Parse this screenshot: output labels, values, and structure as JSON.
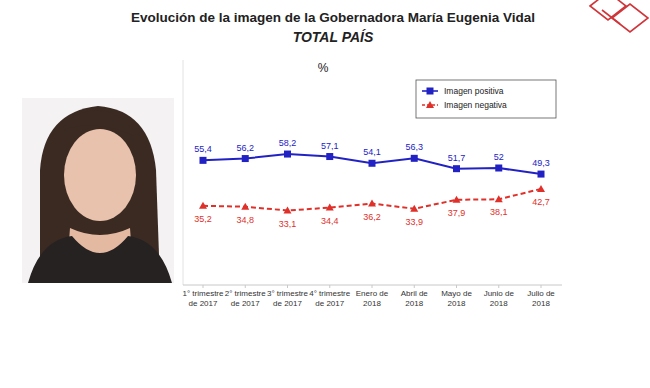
{
  "chart_data": {
    "type": "line",
    "title": "Evolución de la imagen de la Gobernadora María Eugenia Vidal",
    "subtitle": "TOTAL PAÍS",
    "ylabel": "%",
    "categories": [
      "1° trimestre de 2017",
      "2° trimestre de 2017",
      "3° trimestre de 2017",
      "4° trimestre de 2017",
      "Enero de 2018",
      "Abril de 2018",
      "Mayo de 2018",
      "Junio de 2018",
      "Julio de 2018"
    ],
    "series": [
      {
        "name": "Imagen positiva",
        "color": "#2222c4",
        "marker": "square",
        "line_style": "solid",
        "values": [
          55.4,
          56.2,
          58.2,
          57.1,
          54.1,
          56.3,
          51.7,
          52,
          49.3
        ],
        "value_labels": [
          "55,4",
          "56,2",
          "58,2",
          "57,1",
          "54,1",
          "56,3",
          "51,7",
          "52",
          "49,3"
        ]
      },
      {
        "name": "Imagen negativa",
        "color": "#e0302a",
        "marker": "triangle",
        "line_style": "dashed",
        "values": [
          35.2,
          34.8,
          33.1,
          34.4,
          36.2,
          33.9,
          37.9,
          38.1,
          42.7
        ],
        "value_labels": [
          "35,2",
          "34,8",
          "33,1",
          "34,4",
          "36,2",
          "33,9",
          "37,9",
          "38,1",
          "42,7"
        ]
      }
    ],
    "ylim": [
      0,
      100
    ],
    "yticks": [],
    "tick_labels": "x",
    "data_labels": true,
    "legend": "upper right",
    "grid": false
  }
}
